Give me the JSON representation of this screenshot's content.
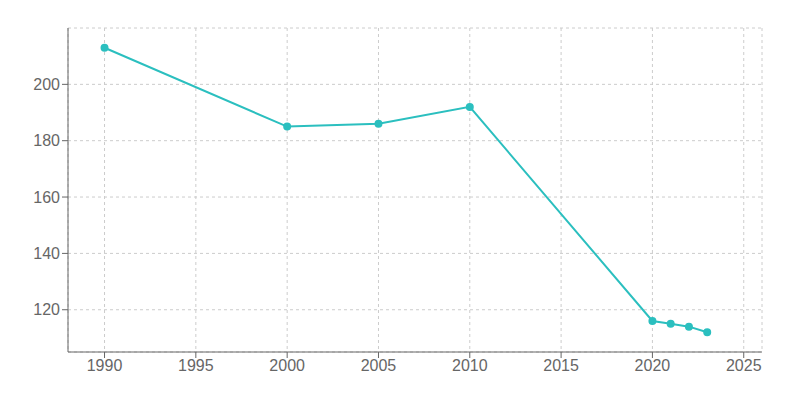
{
  "chart_data": {
    "type": "line",
    "x": [
      1990,
      2000,
      2005,
      2010,
      2020,
      2021,
      2022,
      2023
    ],
    "values": [
      213,
      185,
      186,
      192,
      116,
      115,
      114,
      112
    ],
    "color": "#2bbfbf",
    "marker": "circle",
    "xlim": [
      1988,
      2026
    ],
    "ylim": [
      105,
      220
    ],
    "xticks": [
      1990,
      1995,
      2000,
      2005,
      2010,
      2015,
      2020,
      2025
    ],
    "yticks": [
      120,
      140,
      160,
      180,
      200
    ],
    "grid": true
  }
}
